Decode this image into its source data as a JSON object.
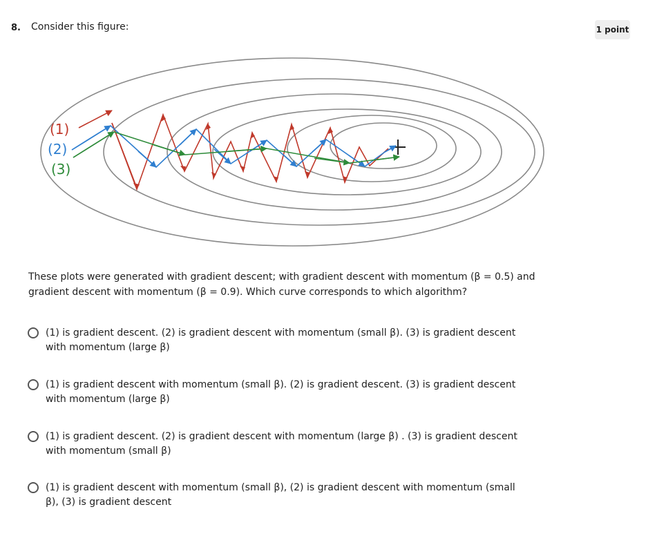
{
  "question": {
    "number": "8.",
    "prompt": "Consider this figure:",
    "points": "1 point",
    "body": "These plots were generated with gradient descent; with gradient descent with momentum (β = 0.5) and gradient descent with momentum (β = 0.9). Which curve corresponds to which algorithm?"
  },
  "figure": {
    "curve_labels": [
      "(1)",
      "(2)",
      "(3)"
    ],
    "colors": {
      "curve1": "#c0392b",
      "curve2": "#2f7fd0",
      "curve3": "#2e8b3a",
      "contour": "#8a8a8a"
    }
  },
  "options": [
    {
      "label": "(1) is gradient descent. (2) is gradient descent with momentum (small β). (3) is gradient descent with momentum (large β)"
    },
    {
      "label": "(1) is gradient descent with momentum (small β). (2) is gradient descent. (3) is gradient descent with momentum (large β)"
    },
    {
      "label": "(1) is gradient descent. (2) is gradient descent with momentum (large β) . (3) is gradient descent with momentum (small β)"
    },
    {
      "label": "(1) is gradient descent with momentum (small β), (2) is gradient descent with momentum (small β), (3) is gradient descent"
    }
  ]
}
